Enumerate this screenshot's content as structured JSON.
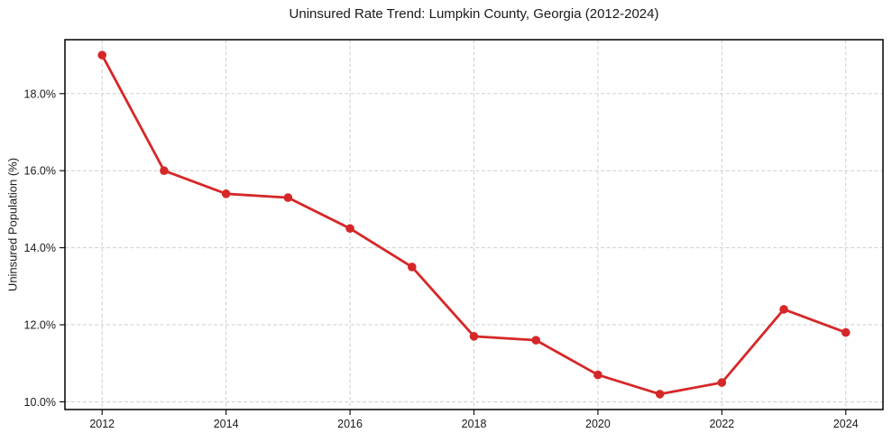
{
  "chart_data": {
    "type": "line",
    "title": "Uninsured Rate Trend: Lumpkin County, Georgia (2012-2024)",
    "xlabel": "",
    "ylabel": "Uninsured Population (%)",
    "x": [
      2012,
      2013,
      2014,
      2015,
      2016,
      2017,
      2018,
      2019,
      2020,
      2021,
      2022,
      2023,
      2024
    ],
    "series": [
      {
        "name": "Uninsured rate",
        "values": [
          19.0,
          16.0,
          15.4,
          15.3,
          14.5,
          13.5,
          11.7,
          11.6,
          10.7,
          10.2,
          10.5,
          12.4,
          11.8
        ]
      }
    ],
    "xticks": [
      2012,
      2014,
      2016,
      2018,
      2020,
      2022,
      2024
    ],
    "xtick_labels": [
      "2012",
      "2014",
      "2016",
      "2018",
      "2020",
      "2022",
      "2024"
    ],
    "yticks": [
      10,
      12,
      14,
      16,
      18
    ],
    "ytick_labels": [
      "10.0%",
      "12.0%",
      "14.0%",
      "16.0%",
      "18.0%"
    ],
    "xlim": [
      2011.4,
      2024.6
    ],
    "ylim": [
      9.8,
      19.4
    ],
    "grid": true,
    "grid_style": "dashed",
    "legend": "none",
    "line_color": "#d62728",
    "marker": "circle",
    "marker_radius": 4.8
  }
}
